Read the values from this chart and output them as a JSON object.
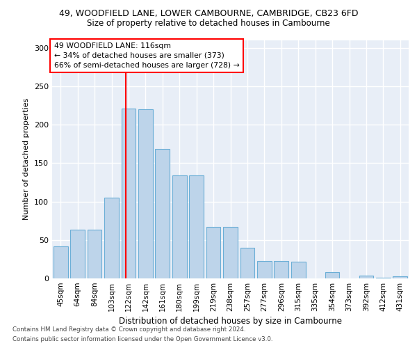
{
  "title1": "49, WOODFIELD LANE, LOWER CAMBOURNE, CAMBRIDGE, CB23 6FD",
  "title2": "Size of property relative to detached houses in Cambourne",
  "xlabel": "Distribution of detached houses by size in Cambourne",
  "ylabel": "Number of detached properties",
  "categories": [
    "45sqm",
    "64sqm",
    "84sqm",
    "103sqm",
    "122sqm",
    "142sqm",
    "161sqm",
    "180sqm",
    "199sqm",
    "219sqm",
    "238sqm",
    "257sqm",
    "277sqm",
    "296sqm",
    "315sqm",
    "335sqm",
    "354sqm",
    "373sqm",
    "392sqm",
    "412sqm",
    "431sqm"
  ],
  "values": [
    42,
    63,
    63,
    105,
    221,
    220,
    168,
    134,
    134,
    67,
    67,
    40,
    23,
    23,
    22,
    0,
    8,
    0,
    4,
    1,
    3
  ],
  "bar_color": "#bdd4ea",
  "bar_edge_color": "#6aaed6",
  "vline_color": "red",
  "vline_pos": 3.82,
  "annotation_text": "49 WOODFIELD LANE: 116sqm\n← 34% of detached houses are smaller (373)\n66% of semi-detached houses are larger (728) →",
  "annotation_box_color": "white",
  "annotation_box_edge_color": "red",
  "footer1": "Contains HM Land Registry data © Crown copyright and database right 2024.",
  "footer2": "Contains public sector information licensed under the Open Government Licence v3.0.",
  "ylim": [
    0,
    310
  ],
  "background_color": "#e8eef7",
  "grid_color": "white"
}
